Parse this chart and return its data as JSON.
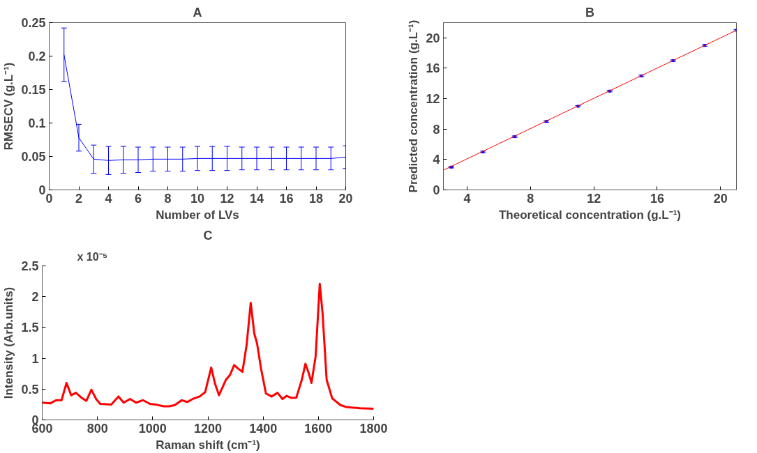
{
  "chart_data": [
    {
      "type": "line",
      "title": "A",
      "xlabel": "Number of LVs",
      "ylabel": "RMSECV (g.L⁻¹)",
      "x": [
        1,
        2,
        3,
        4,
        5,
        6,
        7,
        8,
        9,
        10,
        11,
        12,
        13,
        14,
        15,
        16,
        17,
        18,
        19,
        20
      ],
      "xlim": [
        0,
        20
      ],
      "xticks": [
        0,
        2,
        4,
        6,
        8,
        10,
        12,
        14,
        16,
        18,
        20
      ],
      "ylim": [
        0,
        0.25
      ],
      "yticks": [
        0,
        0.05,
        0.1,
        0.15,
        0.2,
        0.25
      ],
      "grid": false,
      "series": [
        {
          "color": "#0000ff",
          "values": [
            0.202,
            0.078,
            0.046,
            0.044,
            0.045,
            0.045,
            0.046,
            0.046,
            0.046,
            0.047,
            0.047,
            0.047,
            0.047,
            0.047,
            0.047,
            0.047,
            0.047,
            0.047,
            0.047,
            0.049
          ],
          "errors": [
            0.04,
            0.02,
            0.021,
            0.021,
            0.02,
            0.019,
            0.018,
            0.018,
            0.018,
            0.018,
            0.018,
            0.018,
            0.017,
            0.017,
            0.017,
            0.017,
            0.017,
            0.017,
            0.017,
            0.017
          ]
        }
      ]
    },
    {
      "type": "scatter",
      "title": "B",
      "xlabel": "Theoretical concentration (g.L⁻¹)",
      "ylabel": "Predicted concentration (g.L⁻¹)",
      "xlim": [
        2.5,
        21
      ],
      "xticks": [
        4,
        8,
        12,
        16,
        20
      ],
      "ylim": [
        0,
        22
      ],
      "yticks": [
        0,
        4,
        8,
        12,
        16,
        20
      ],
      "grid": false,
      "series": [
        {
          "color": "#0000ff",
          "marker": "square",
          "x": [
            3,
            5,
            7,
            9,
            11,
            13,
            15,
            17,
            19,
            21
          ],
          "values": [
            3,
            5,
            7,
            9,
            11,
            13,
            15,
            17,
            19,
            21
          ],
          "errors": [
            0.1,
            0.1,
            0.1,
            0.1,
            0.1,
            0.1,
            0.1,
            0.1,
            0.1,
            0.1
          ]
        },
        {
          "type": "line",
          "marker": "none",
          "color": "#ff0000",
          "x": [
            2.5,
            21
          ],
          "values": [
            2.6,
            21
          ]
        }
      ]
    },
    {
      "type": "line",
      "title": "C",
      "xlabel": "Raman shift (cm⁻¹)",
      "ylabel": "Intensity (Arb.units)",
      "annotations": [
        "x 10⁻⁵"
      ],
      "xlim": [
        600,
        1800
      ],
      "xticks": [
        600,
        800,
        1000,
        1200,
        1400,
        1600,
        1800
      ],
      "ylim": [
        0,
        2.5
      ],
      "yticks": [
        0,
        0.5,
        1,
        1.5,
        2,
        2.5
      ],
      "grid": false,
      "x": [
        600,
        630,
        650,
        670,
        688,
        705,
        722,
        745,
        760,
        778,
        795,
        810,
        850,
        876,
        895,
        918,
        940,
        965,
        990,
        1010,
        1040,
        1060,
        1080,
        1105,
        1125,
        1145,
        1170,
        1190,
        1212,
        1225,
        1240,
        1265,
        1280,
        1295,
        1310,
        1325,
        1340,
        1355,
        1368,
        1378,
        1392,
        1410,
        1430,
        1452,
        1470,
        1485,
        1500,
        1520,
        1540,
        1553,
        1565,
        1575,
        1590,
        1605,
        1615,
        1630,
        1650,
        1680,
        1700,
        1750,
        1800
      ],
      "series": [
        {
          "color": "#ff0000",
          "values": [
            0.28,
            0.27,
            0.32,
            0.32,
            0.6,
            0.4,
            0.44,
            0.35,
            0.31,
            0.49,
            0.34,
            0.26,
            0.25,
            0.38,
            0.28,
            0.34,
            0.28,
            0.32,
            0.26,
            0.25,
            0.22,
            0.22,
            0.24,
            0.32,
            0.29,
            0.34,
            0.38,
            0.45,
            0.85,
            0.6,
            0.4,
            0.65,
            0.73,
            0.89,
            0.83,
            0.78,
            1.21,
            1.9,
            1.4,
            1.24,
            0.84,
            0.43,
            0.38,
            0.44,
            0.34,
            0.39,
            0.36,
            0.36,
            0.65,
            0.91,
            0.76,
            0.6,
            1.03,
            2.21,
            1.74,
            0.65,
            0.35,
            0.24,
            0.21,
            0.19,
            0.18
          ]
        }
      ]
    }
  ]
}
